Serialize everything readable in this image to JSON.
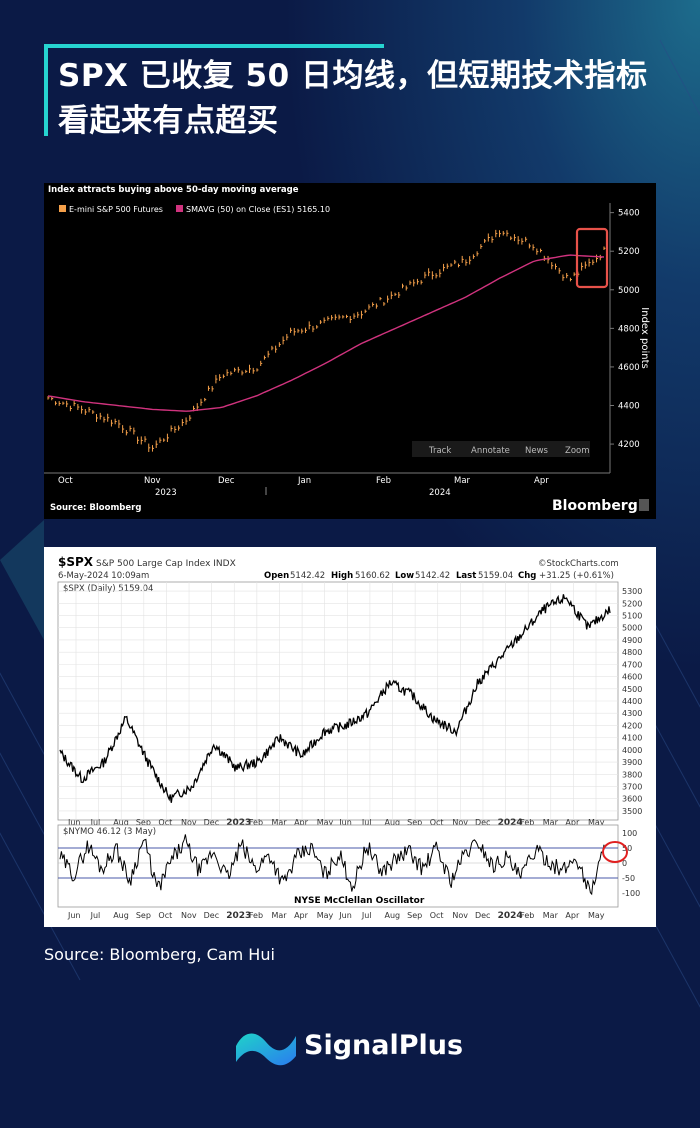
{
  "title": "SPX 已收复 50 日均线，但短期技术指标看起来有点超买",
  "source_note": "Source: Bloomberg, Cam Hui",
  "brand": "SignalPlus",
  "colors": {
    "background": "#0b1a46",
    "accent": "#26d4d0",
    "price_bars": "#f5a04a",
    "ma_line": "#d0337e"
  },
  "chart_data": [
    {
      "type": "line",
      "title": "Index attracts buying above 50-day moving average",
      "legend": [
        "E-mini S&P 500 Futures",
        "SMAVG (50)  on Close (ES1) 5165.10"
      ],
      "ylabel": "Index points",
      "ylim": [
        4050,
        5450
      ],
      "yticks": [
        4200,
        4400,
        4600,
        4800,
        5000,
        5200,
        5400
      ],
      "x_month_labels": [
        "Oct",
        "Nov",
        "Dec",
        "Jan",
        "Feb",
        "Mar",
        "Apr"
      ],
      "x_year_labels": [
        "2023",
        "2024"
      ],
      "toolbar": [
        "Track",
        "Annotate",
        "News",
        "Zoom"
      ],
      "source": "Source: Bloomberg",
      "brand": "Bloomberg",
      "highlight": "red box around April price action near 50-day average",
      "series": [
        {
          "name": "E-mini S&P 500 Futures",
          "months": [
            "Sep-23",
            "Oct-23",
            "Oct-23",
            "Oct-23",
            "Nov-23",
            "Nov-23",
            "Dec-23",
            "Dec-23",
            "Jan-24",
            "Jan-24",
            "Feb-24",
            "Feb-24",
            "Mar-24",
            "Mar-24",
            "Apr-24",
            "Apr-24",
            "May-24"
          ],
          "values": [
            4440,
            4380,
            4310,
            4180,
            4330,
            4560,
            4600,
            4780,
            4830,
            4880,
            4980,
            5080,
            5150,
            5310,
            5230,
            5050,
            5200
          ]
        },
        {
          "name": "SMAVG (50)",
          "values": [
            4450,
            4420,
            4400,
            4380,
            4370,
            4390,
            4450,
            4530,
            4620,
            4720,
            4800,
            4880,
            4960,
            5060,
            5150,
            5180,
            5170
          ]
        }
      ]
    },
    {
      "type": "line",
      "title": "$SPX S&P 500 Large Cap Index INDX",
      "date": "6-May-2024 10:09am",
      "brand": "©StockCharts.com",
      "quote": {
        "open": "5142.42",
        "high": "5160.62",
        "low": "5142.42",
        "last": "5159.04",
        "chg": "+31.25 (+0.61%)"
      },
      "quote_labels": {
        "open": "Open",
        "high": "High",
        "low": "Low",
        "last": "Last",
        "chg": "Chg"
      },
      "legend": "$SPX (Daily) 5159.04",
      "ylim": [
        3450,
        5350
      ],
      "yticks": [
        3500,
        3600,
        3700,
        3800,
        3900,
        4000,
        4100,
        4200,
        4300,
        4400,
        4500,
        4600,
        4700,
        4800,
        4900,
        5000,
        5100,
        5200,
        5300
      ],
      "x_labels": [
        "Jun",
        "Jul",
        "Aug",
        "Sep",
        "Oct",
        "Nov",
        "Dec",
        "2023",
        "Feb",
        "Mar",
        "Apr",
        "May",
        "Jun",
        "Jul",
        "Aug",
        "Sep",
        "Oct",
        "Nov",
        "Dec",
        "2024",
        "Feb",
        "Mar",
        "Apr",
        "May"
      ],
      "series": [
        {
          "name": "$SPX",
          "values": [
            3980,
            3760,
            3900,
            4260,
            3900,
            3600,
            3700,
            4050,
            3850,
            3900,
            4100,
            3950,
            4150,
            4200,
            4300,
            4550,
            4450,
            4250,
            4150,
            4550,
            4750,
            4950,
            5150,
            5250,
            5000,
            5150
          ]
        }
      ]
    },
    {
      "type": "line",
      "title": "$NYMO 46.12 (3 May)",
      "label": "NYSE McClellan Oscillator",
      "ylim": [
        -140,
        120
      ],
      "yticks": [
        100,
        50,
        0,
        -50,
        -100
      ],
      "reference_lines": [
        50,
        -50
      ],
      "highlight": "red circle at latest reading",
      "series": [
        {
          "name": "$NYMO",
          "values": [
            20,
            -40,
            60,
            -20,
            50,
            -60,
            80,
            -90,
            10,
            70,
            -30,
            40,
            -50,
            60,
            -20,
            30,
            -70,
            20,
            50,
            -40,
            30,
            -80,
            60,
            -30,
            10,
            40,
            -20,
            50,
            -60,
            30,
            70,
            -10,
            20,
            -50,
            40,
            10,
            -30,
            20,
            -100,
            46
          ]
        }
      ]
    }
  ]
}
